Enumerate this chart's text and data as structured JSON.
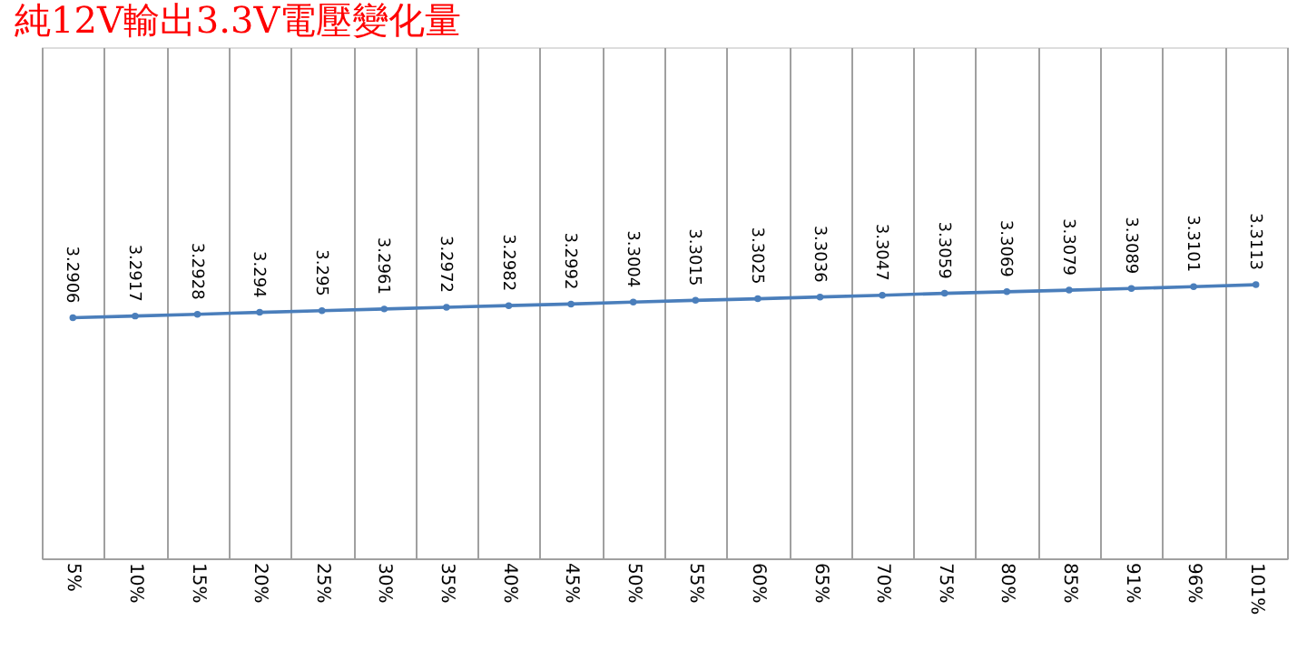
{
  "chart_data": {
    "type": "line",
    "title": "純12V輸出3.3V電壓變化量",
    "categories": [
      "5%",
      "10%",
      "15%",
      "20%",
      "25%",
      "30%",
      "35%",
      "40%",
      "45%",
      "50%",
      "55%",
      "60%",
      "65%",
      "70%",
      "75%",
      "80%",
      "85%",
      "91%",
      "96%",
      "101%"
    ],
    "series": [
      {
        "color": "#4a7ebb",
        "values": [
          3.2906,
          3.2917,
          3.2928,
          3.294,
          3.295,
          3.2961,
          3.2972,
          3.2982,
          3.2992,
          3.3004,
          3.3015,
          3.3025,
          3.3036,
          3.3047,
          3.3059,
          3.3069,
          3.3079,
          3.3089,
          3.3101,
          3.3113
        ]
      }
    ],
    "ylim": [
      3.14,
      3.46
    ],
    "data_labels": true,
    "grid": "x",
    "tick_labels": "x",
    "marker": "circle",
    "line_style": "solid"
  }
}
